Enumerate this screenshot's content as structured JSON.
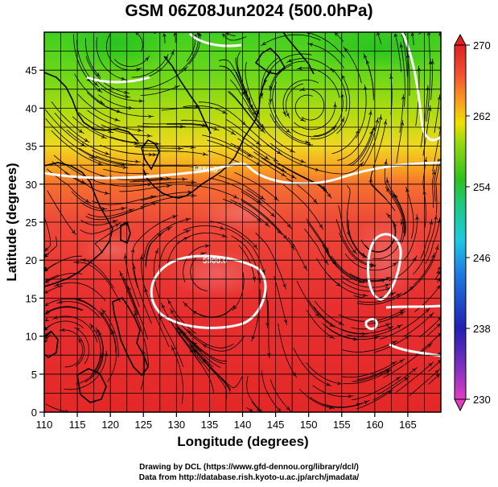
{
  "title": "GSM 06Z08Jun2024 (500.0hPa)",
  "axes": {
    "xlabel": "Longitude (degrees)",
    "ylabel": "Latitude  (degrees)",
    "x_ticks": [
      "110",
      "115",
      "120",
      "125",
      "130",
      "135",
      "140",
      "145",
      "150",
      "155",
      "160",
      "165"
    ],
    "y_ticks": [
      "0",
      "5",
      "10",
      "15",
      "20",
      "25",
      "30",
      "35",
      "40",
      "45"
    ],
    "xlim": [
      110,
      170
    ],
    "ylim": [
      0,
      50
    ]
  },
  "colorbar": {
    "ticks": [
      "270",
      "262",
      "254",
      "246",
      "238",
      "230"
    ],
    "range": [
      230,
      270
    ],
    "colors": [
      "#e040c0",
      "#8030c0",
      "#2020b0",
      "#1e78e0",
      "#20c8e0",
      "#20c880",
      "#30c020",
      "#90d810",
      "#f0e000",
      "#f8a020",
      "#f05030",
      "#e02020"
    ]
  },
  "contours": {
    "labels": [
      "5880.0",
      "5900.0"
    ]
  },
  "footer": {
    "line1": "Drawing by DCL (https://www.gfd-dennou.org/library/dcl/)",
    "line2": "Data from http://database.rish.kyoto-u.ac.jp/arch/jmadata/"
  },
  "chart_data": {
    "type": "heatmap",
    "variable": "500.0hPa",
    "title": "GSM 06Z08Jun2024 (500.0hPa)",
    "xlabel": "Longitude (degrees)",
    "ylabel": "Latitude  (degrees)",
    "xlim": [
      110,
      170
    ],
    "ylim": [
      0,
      50
    ],
    "color_scale": {
      "min": 230,
      "max": 270,
      "ticks": [
        230,
        238,
        246,
        254,
        262,
        270
      ]
    },
    "field_approx": {
      "lat": [
        50,
        45,
        40,
        35,
        30,
        25,
        20,
        15,
        10,
        5,
        0
      ],
      "value": [
        255,
        257,
        260,
        264,
        267,
        268,
        269,
        269,
        269,
        269,
        269
      ]
    },
    "contour_levels": [
      5880,
      5900
    ],
    "vortices": [
      {
        "kind": "anticyclone",
        "lon": 135,
        "lat": 18.5
      },
      {
        "kind": "cyclone",
        "lon": 160.5,
        "lat": 23
      },
      {
        "kind": "cyclone",
        "lon": 122.5,
        "lat": 48
      },
      {
        "kind": "cyclone",
        "lon": 150,
        "lat": 40
      },
      {
        "kind": "cyclone",
        "lon": 113,
        "lat": 8
      }
    ]
  }
}
